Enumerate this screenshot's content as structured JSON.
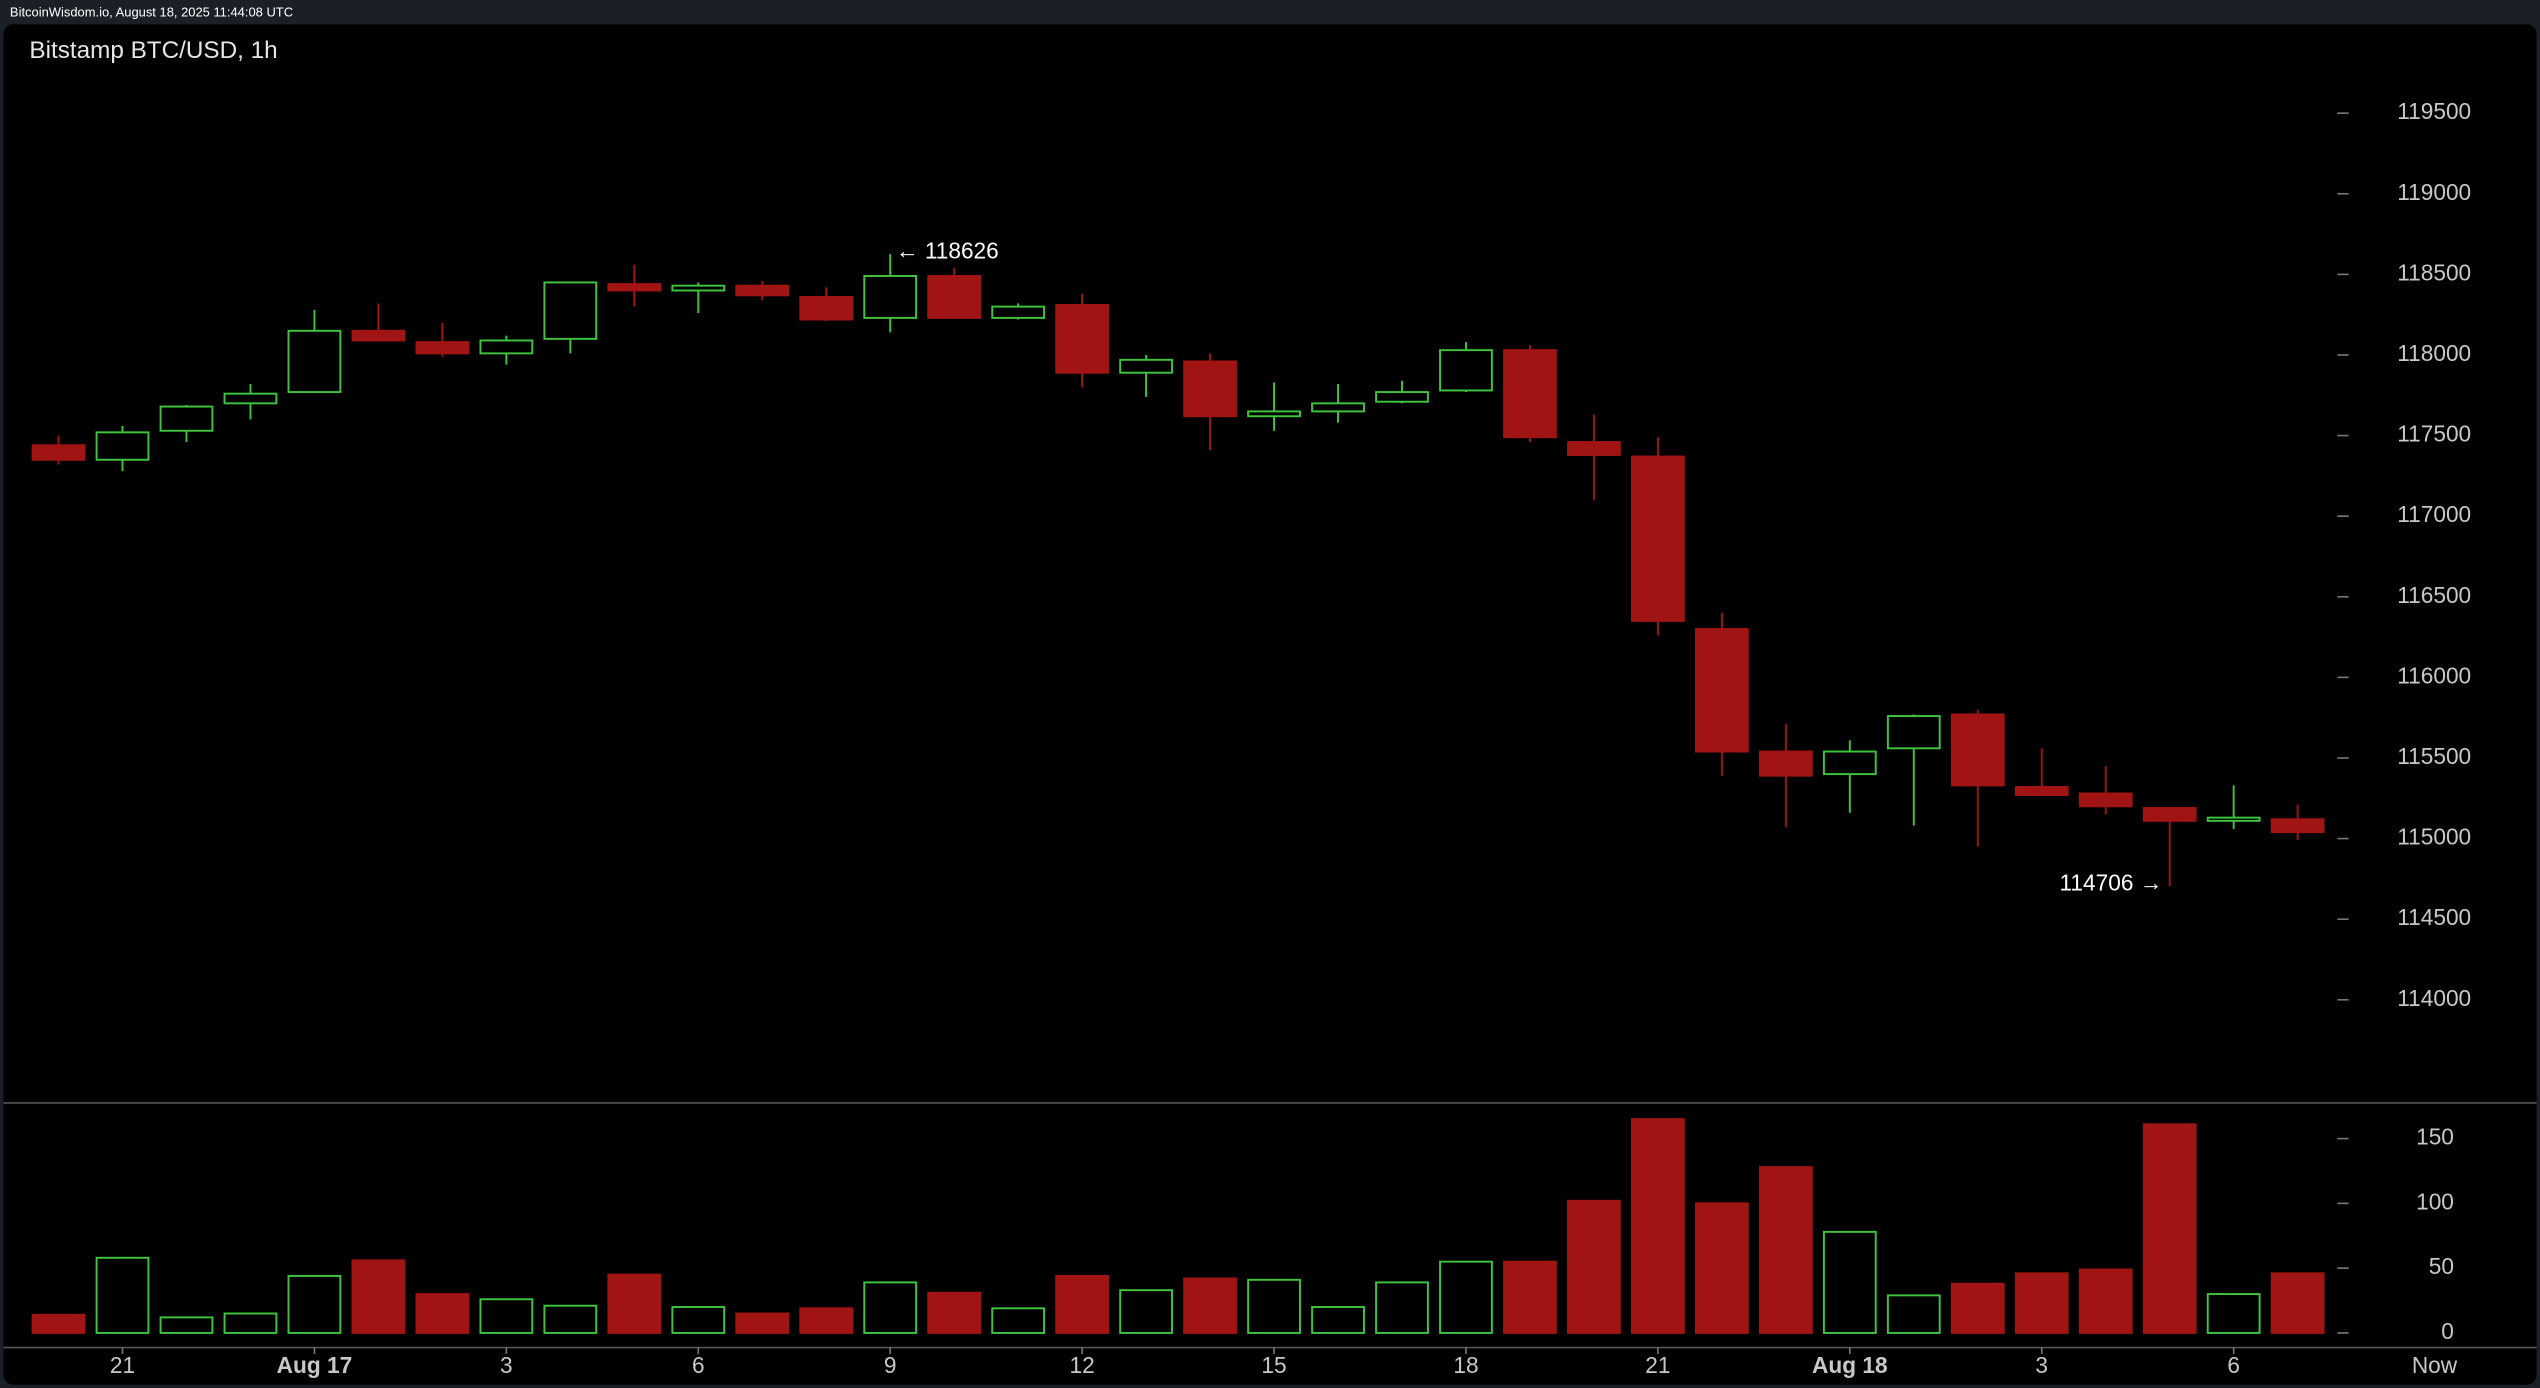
{
  "header": "BitcoinWisdom.io, August 18, 2025 11:44:08 UTC",
  "chart_data": {
    "type": "candlestick",
    "title": "Bitstamp BTC/USD, 1h",
    "categories": [
      null,
      "21",
      null,
      null,
      "Aug 17",
      null,
      null,
      "3",
      null,
      null,
      "6",
      null,
      null,
      "9",
      null,
      null,
      "12",
      null,
      null,
      "15",
      null,
      null,
      "18",
      null,
      null,
      "21",
      null,
      null,
      "Aug 18",
      null,
      null,
      "3",
      null,
      null,
      "6",
      null
    ],
    "now_label": "Now",
    "open": [
      117440,
      117350,
      117530,
      117700,
      117770,
      118150,
      118080,
      118010,
      118100,
      118440,
      118400,
      118430,
      118360,
      118230,
      118490,
      118230,
      118310,
      117890,
      117960,
      117620,
      117650,
      117710,
      117780,
      118030,
      117460,
      117370,
      116300,
      115540,
      115400,
      115560,
      115770,
      115320,
      115280,
      115190,
      115110,
      115120
    ],
    "high": [
      117500,
      117560,
      117690,
      117820,
      118280,
      118320,
      118200,
      118120,
      118450,
      118560,
      118450,
      118460,
      118420,
      118626,
      118540,
      118320,
      118380,
      118000,
      118010,
      117830,
      117820,
      117840,
      118080,
      118060,
      117630,
      117490,
      116400,
      115710,
      115610,
      115770,
      115800,
      115560,
      115450,
      115190,
      115330,
      115210
    ],
    "low": [
      117320,
      117280,
      117460,
      117600,
      117770,
      118090,
      117990,
      117940,
      118010,
      118300,
      118260,
      118340,
      118210,
      118140,
      118230,
      118220,
      117800,
      117740,
      117410,
      117530,
      117580,
      117700,
      117770,
      117460,
      117100,
      116260,
      115390,
      115070,
      115160,
      115080,
      114950,
      115270,
      115150,
      114706,
      115060,
      114990
    ],
    "close": [
      117350,
      117520,
      117680,
      117760,
      118150,
      118090,
      118010,
      118090,
      118450,
      118400,
      118430,
      118370,
      118220,
      118490,
      118230,
      118300,
      117890,
      117970,
      117620,
      117650,
      117700,
      117770,
      118030,
      117490,
      117380,
      116350,
      115540,
      115390,
      115540,
      115760,
      115330,
      115270,
      115200,
      115110,
      115130,
      115040
    ],
    "volume": [
      14,
      58,
      12,
      15,
      44,
      56,
      30,
      26,
      21,
      45,
      20,
      15,
      19,
      39,
      31,
      19,
      44,
      33,
      42,
      41,
      20,
      39,
      55,
      55,
      102,
      165,
      100,
      128,
      78,
      29,
      38,
      46,
      49,
      161,
      30,
      46
    ],
    "up_color": "#3ec43e",
    "down_color": "#a01414",
    "ylim": [
      113370,
      119750
    ],
    "yticks": [
      114000,
      114500,
      115000,
      115500,
      116000,
      116500,
      117000,
      117500,
      118000,
      118500,
      119000,
      119500
    ],
    "y2lim": [
      0,
      175
    ],
    "y2ticks": [
      0,
      50,
      100,
      150
    ],
    "annotations": [
      "← 118626",
      "114706 →"
    ]
  }
}
